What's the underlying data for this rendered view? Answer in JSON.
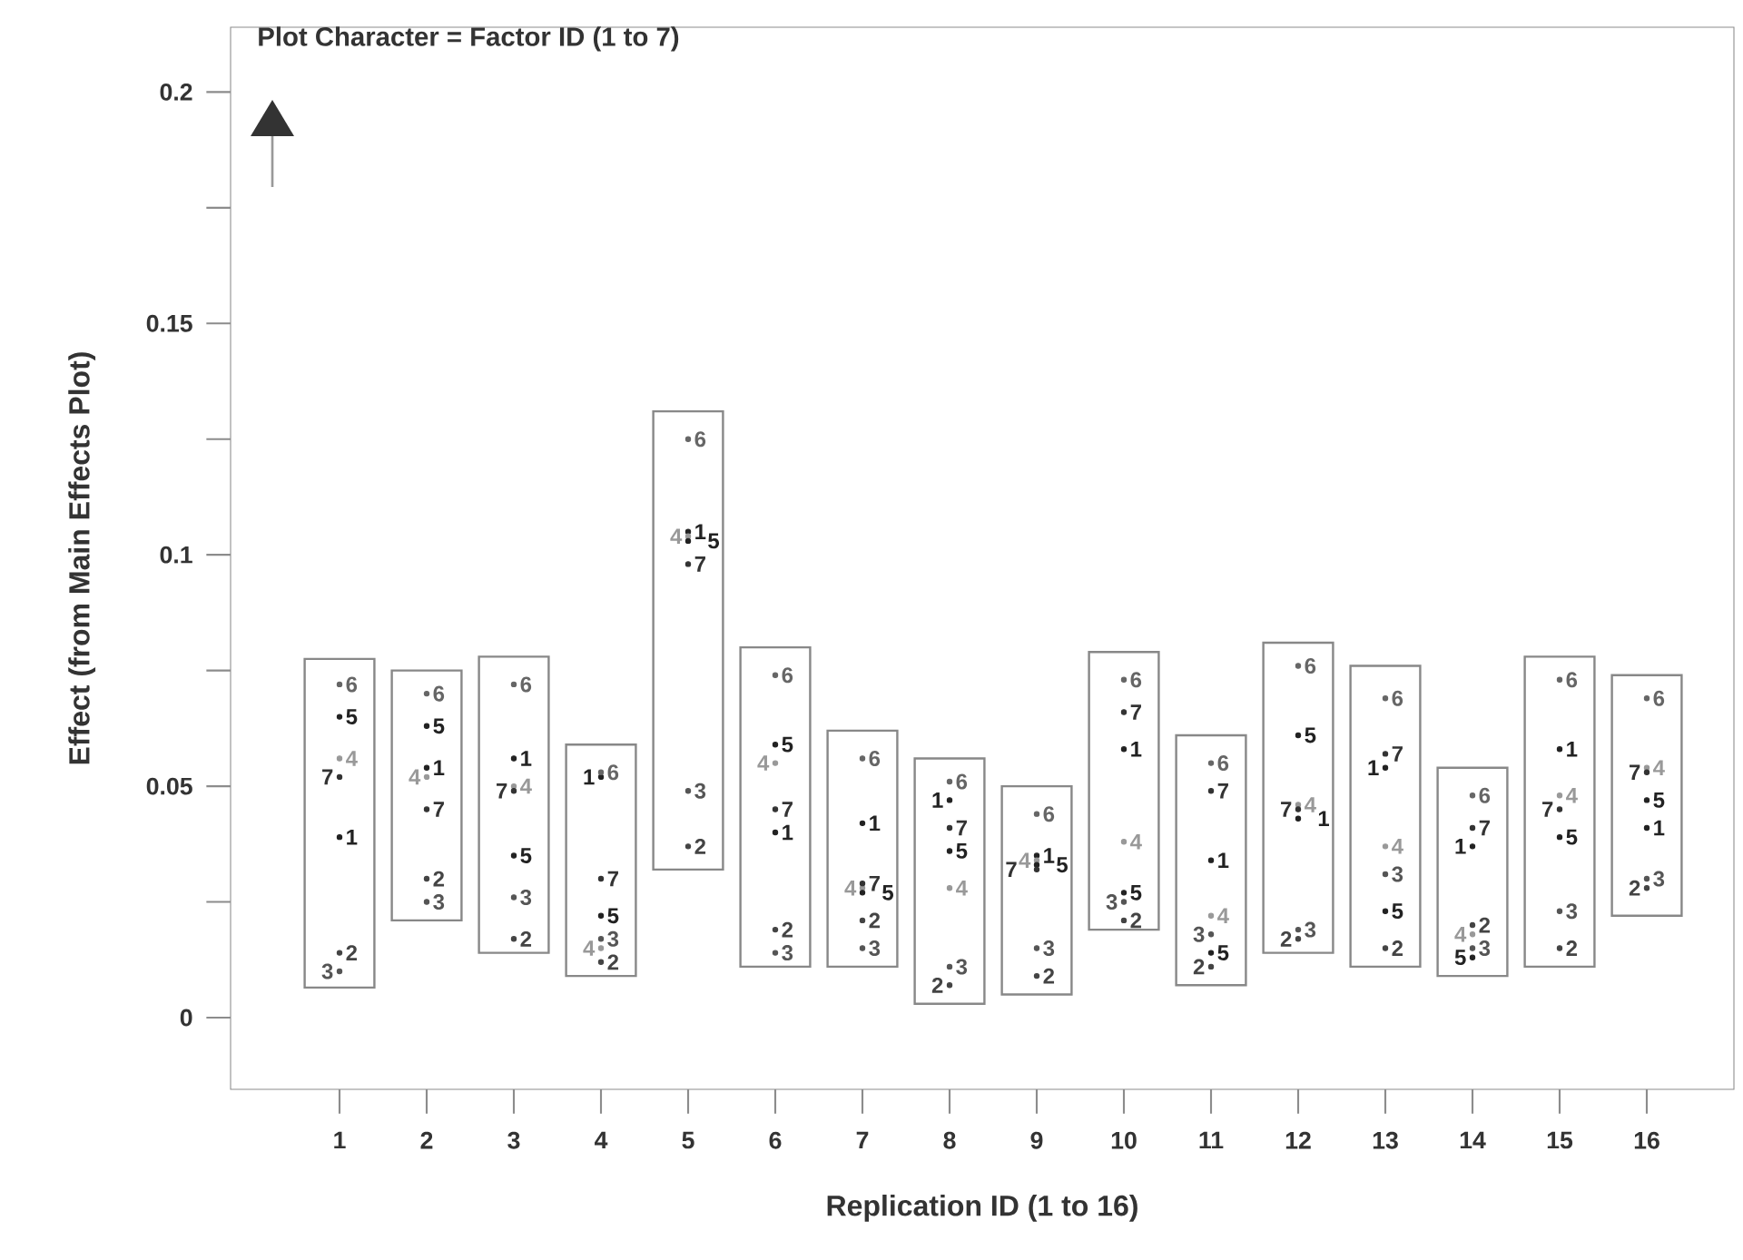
{
  "chart_data": {
    "type": "scatter",
    "title": "Plot Character = Factor ID (1 to 7)",
    "xlabel": "Replication ID (1 to 16)",
    "ylabel": "Effect (from Main Effects Plot)",
    "x": [
      1,
      2,
      3,
      4,
      5,
      6,
      7,
      8,
      9,
      10,
      11,
      12,
      13,
      14,
      15,
      16
    ],
    "xlim": [
      -0.25,
      17
    ],
    "ylim": [
      -0.0155,
      0.214
    ],
    "xticks": [
      1,
      2,
      3,
      4,
      5,
      6,
      7,
      8,
      9,
      10,
      11,
      12,
      13,
      14,
      15,
      16
    ],
    "yticks": [
      0,
      {
        "value": 0.025,
        "label": null
      },
      0.05,
      {
        "value": 0.075,
        "label": null
      },
      0.1,
      {
        "value": 0.125,
        "label": null
      },
      0.15,
      {
        "value": 0.175,
        "label": null
      },
      0.2
    ],
    "series": [
      {
        "type": "bar",
        "color": "#888888",
        "base": [
          0.0065,
          0.021,
          0.014,
          0.009,
          0.032,
          0.011,
          0.011,
          0.003,
          0.005,
          0.019,
          0.007,
          0.014,
          0.011,
          0.009,
          0.011,
          0.022
        ],
        "values": [
          0.071,
          0.054,
          0.064,
          0.05,
          0.099,
          0.069,
          0.051,
          0.053,
          0.045,
          0.06,
          0.054,
          0.067,
          0.065,
          0.045,
          0.067,
          0.052
        ]
      },
      {
        "name": "1",
        "color": "#222222",
        "values": [
          0.039,
          0.054,
          0.056,
          0.052,
          0.105,
          0.04,
          0.042,
          0.047,
          0.035,
          0.058,
          0.034,
          0.043,
          0.054,
          0.037,
          0.058,
          0.041
        ]
      },
      {
        "name": "2",
        "color": "#444444",
        "values": [
          0.014,
          0.03,
          0.017,
          0.012,
          0.037,
          0.019,
          0.021,
          0.007,
          0.009,
          0.021,
          0.011,
          0.017,
          0.015,
          0.02,
          0.015,
          0.028
        ]
      },
      {
        "name": "3",
        "color": "#555555",
        "values": [
          0.01,
          0.025,
          0.026,
          0.017,
          0.049,
          0.014,
          0.015,
          0.011,
          0.015,
          0.025,
          0.018,
          0.019,
          0.031,
          0.015,
          0.023,
          0.03
        ]
      },
      {
        "name": "4",
        "color": "#999999",
        "values": [
          0.056,
          0.052,
          0.05,
          0.015,
          0.104,
          0.055,
          0.028,
          0.028,
          0.034,
          0.038,
          0.022,
          0.046,
          0.037,
          0.018,
          0.048,
          0.054
        ]
      },
      {
        "name": "5",
        "color": "#222222",
        "values": [
          0.065,
          0.063,
          0.035,
          0.022,
          0.103,
          0.059,
          0.027,
          0.036,
          0.033,
          0.027,
          0.014,
          0.061,
          0.023,
          0.013,
          0.039,
          0.047
        ]
      },
      {
        "name": "6",
        "color": "#666666",
        "values": [
          0.072,
          0.07,
          0.072,
          0.053,
          0.125,
          0.074,
          0.056,
          0.051,
          0.044,
          0.073,
          0.055,
          0.076,
          0.069,
          0.048,
          0.073,
          0.069
        ]
      },
      {
        "name": "7",
        "color": "#333333",
        "values": [
          0.052,
          0.045,
          0.049,
          0.03,
          0.098,
          0.045,
          0.029,
          0.041,
          0.032,
          0.066,
          0.049,
          0.045,
          0.057,
          0.041,
          0.045,
          0.053
        ]
      }
    ]
  }
}
